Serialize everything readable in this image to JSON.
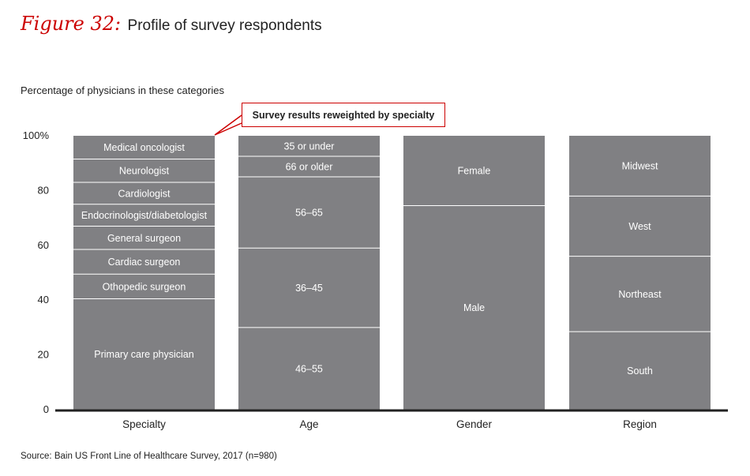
{
  "figure": {
    "label": "Figure 32:",
    "title": "Profile of survey respondents"
  },
  "subtitle": "Percentage of physicians in these categories",
  "callout": "Survey results reweighted by specialty",
  "source": "Source: Bain US Front Line of Healthcare Survey, 2017 (n=980)",
  "colors": {
    "bar": "#808083",
    "separator": "#ffffff",
    "axis": "#222222",
    "accent": "#cc0000"
  },
  "chart_data": {
    "type": "bar",
    "stacked": true,
    "title": "Profile of survey respondents",
    "ylabel": "Percentage of physicians in these categories",
    "ylim": [
      0,
      100
    ],
    "yticks": [
      0,
      20,
      40,
      60,
      80,
      100
    ],
    "ytick_labels": [
      "0",
      "20",
      "40",
      "60",
      "80",
      "100%"
    ],
    "categories": [
      "Specialty",
      "Age",
      "Gender",
      "Region"
    ],
    "stacks": [
      {
        "category": "Specialty",
        "segments": [
          {
            "label": "Primary care physician",
            "value": 40.5
          },
          {
            "label": "Othopedic surgeon",
            "value": 9
          },
          {
            "label": "Cardiac surgeon",
            "value": 9
          },
          {
            "label": "General surgeon",
            "value": 8.5
          },
          {
            "label": "Endocrinologist/diabetologist",
            "value": 8
          },
          {
            "label": "Cardiologist",
            "value": 8
          },
          {
            "label": "Neurologist",
            "value": 8.5
          },
          {
            "label": "Medical oncologist",
            "value": 8.5
          }
        ]
      },
      {
        "category": "Age",
        "segments": [
          {
            "label": "46–55",
            "value": 30
          },
          {
            "label": "36–45",
            "value": 29
          },
          {
            "label": "56–65",
            "value": 26
          },
          {
            "label": "66 or older",
            "value": 7.5
          },
          {
            "label": "35 or under",
            "value": 7.5
          }
        ]
      },
      {
        "category": "Gender",
        "segments": [
          {
            "label": "Male",
            "value": 74.5
          },
          {
            "label": "Female",
            "value": 25.5
          }
        ]
      },
      {
        "category": "Region",
        "segments": [
          {
            "label": "South",
            "value": 28.5
          },
          {
            "label": "Northeast",
            "value": 27.5
          },
          {
            "label": "West",
            "value": 22
          },
          {
            "label": "Midwest",
            "value": 22
          }
        ]
      }
    ]
  }
}
